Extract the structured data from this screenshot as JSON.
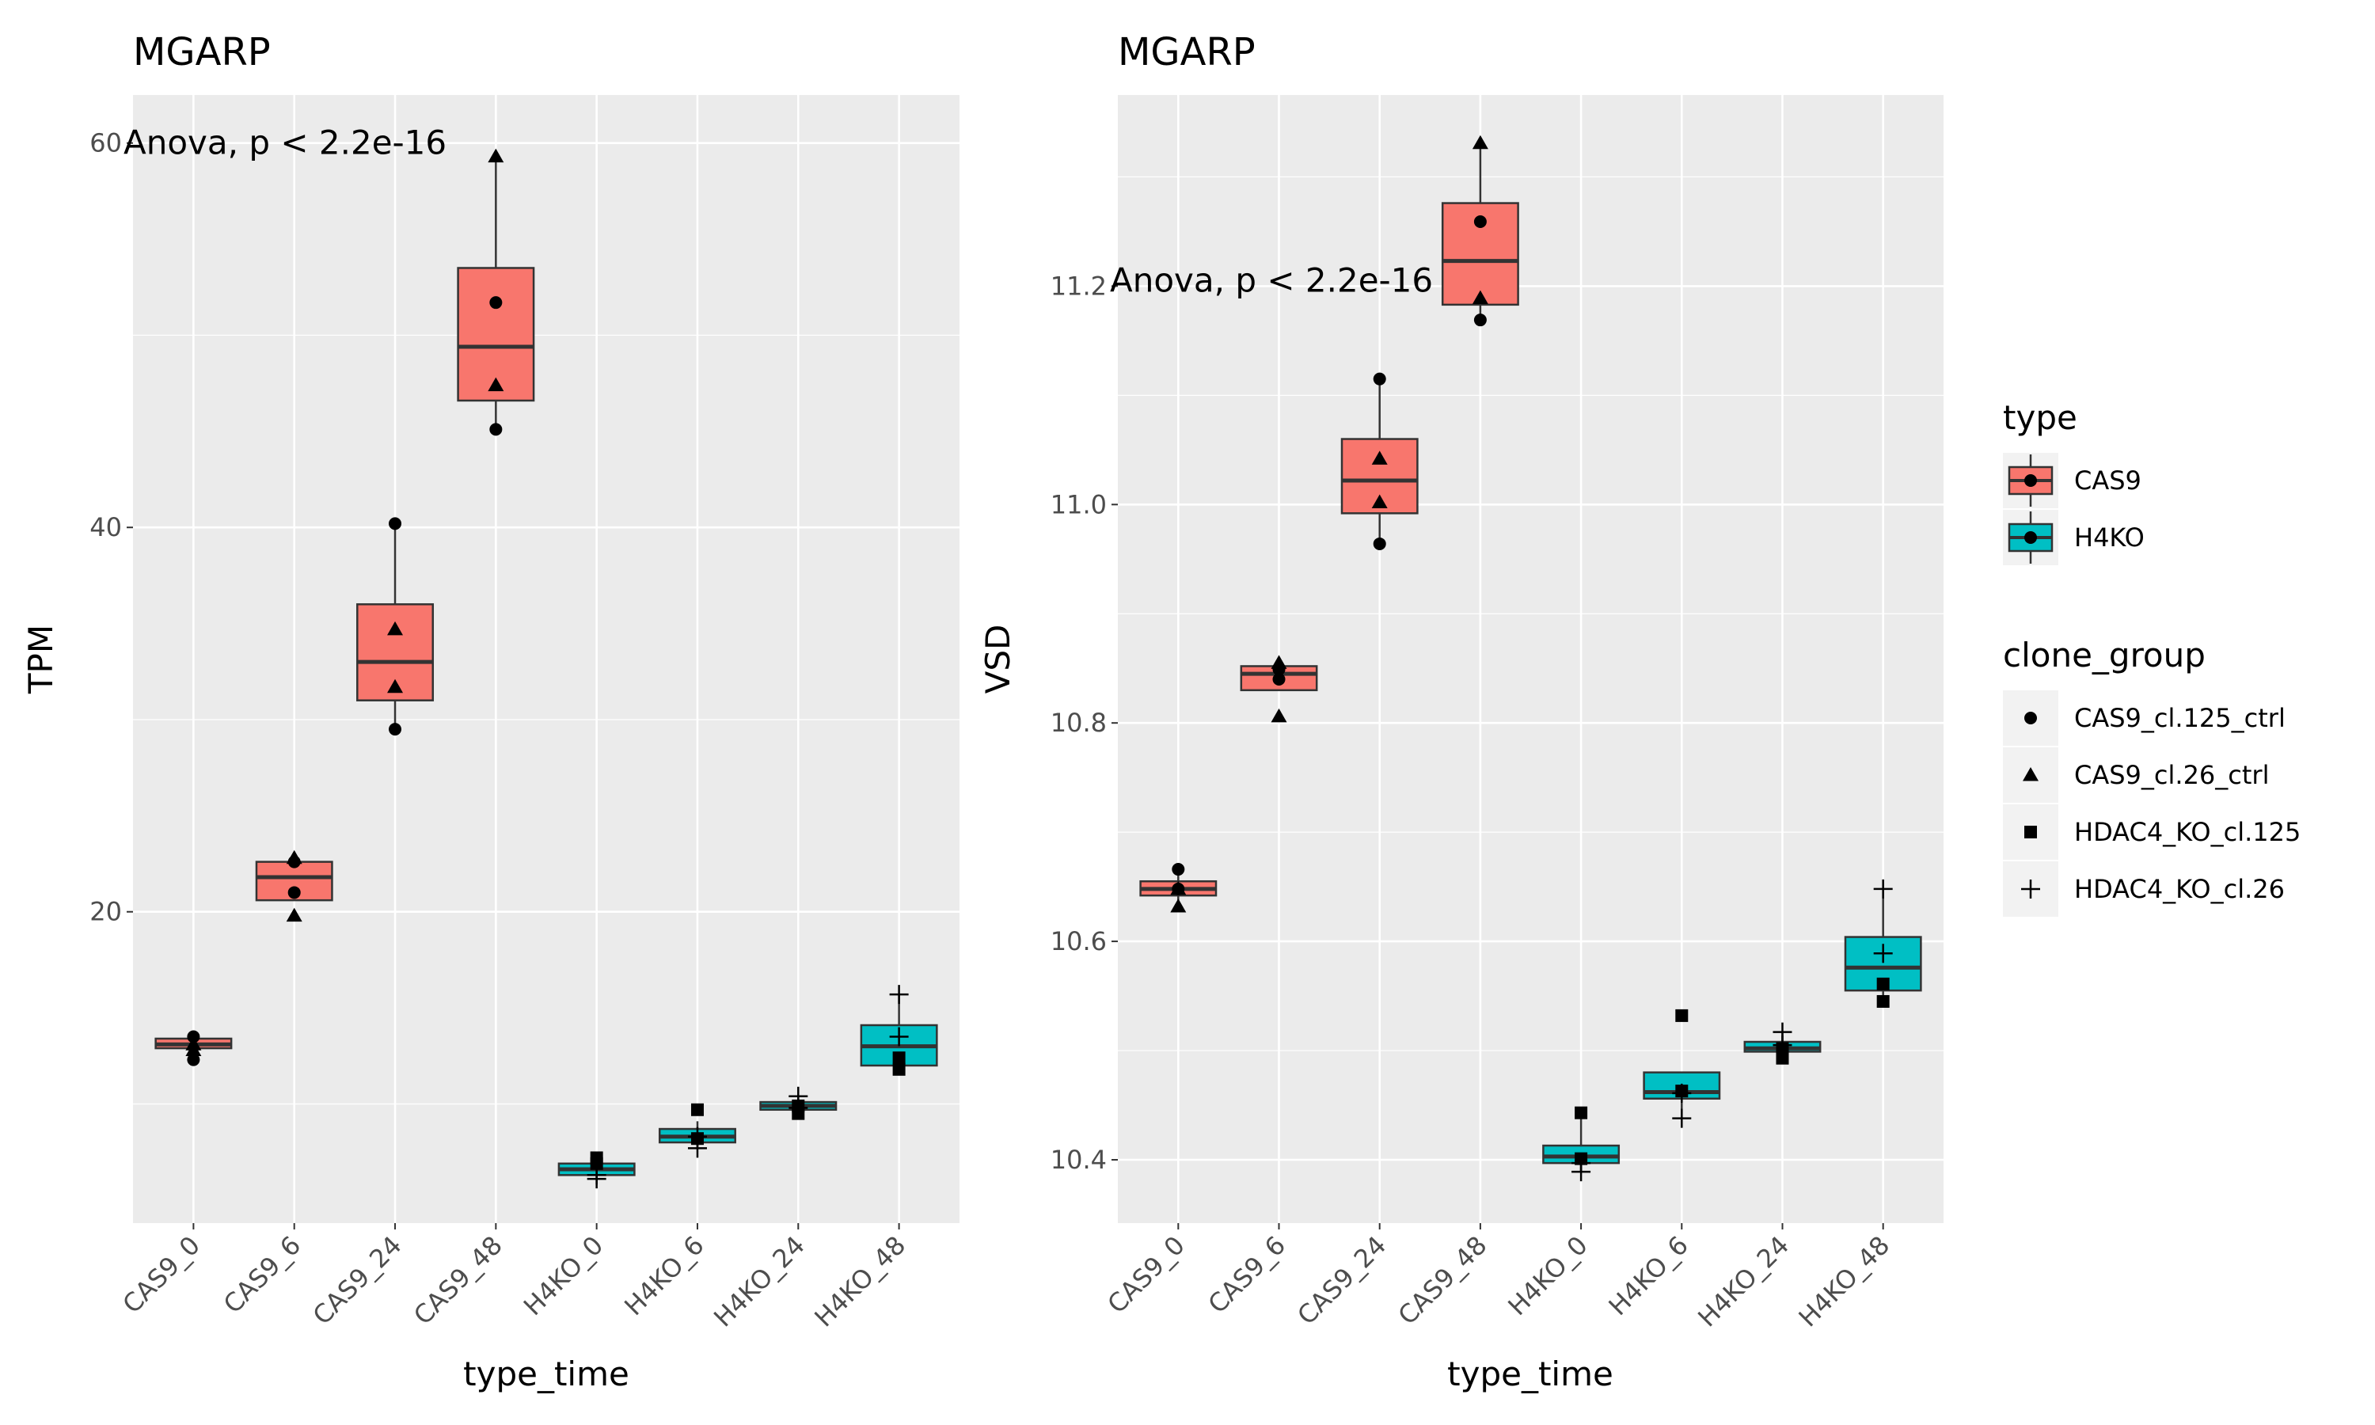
{
  "colors": {
    "panel_bg": "#EBEBEB",
    "grid": "#FFFFFF",
    "CAS9": "#F8766D",
    "H4KO": "#00BFC4",
    "outline": "#333333"
  },
  "chart_data": [
    {
      "type": "box",
      "title": "MGARP",
      "annotation": "Anova, p < 2.2e-16",
      "xlabel": "type_time",
      "ylabel": "TPM",
      "ylim": [
        3.8,
        62.5
      ],
      "yticks": [
        20,
        40,
        60
      ],
      "ytick_labels": [
        "20",
        "40",
        "60"
      ],
      "grid": true,
      "categories": [
        "CAS9_0",
        "CAS9_6",
        "CAS9_24",
        "CAS9_48",
        "H4KO_0",
        "H4KO_6",
        "H4KO_24",
        "H4KO_48"
      ],
      "boxes": [
        {
          "category": "CAS9_0",
          "type": "CAS9",
          "q1": 12.9,
          "median": 13.1,
          "q3": 13.4,
          "whisker_low": 12.8,
          "whisker_high": 13.5
        },
        {
          "category": "CAS9_6",
          "type": "CAS9",
          "q1": 20.6,
          "median": 21.8,
          "q3": 22.6,
          "whisker_low": 20.6,
          "whisker_high": 22.6
        },
        {
          "category": "CAS9_24",
          "type": "CAS9",
          "q1": 31.0,
          "median": 33.0,
          "q3": 36.0,
          "whisker_low": 29.5,
          "whisker_high": 40.2
        },
        {
          "category": "CAS9_48",
          "type": "CAS9",
          "q1": 46.6,
          "median": 49.4,
          "q3": 53.5,
          "whisker_low": 45.1,
          "whisker_high": 59.3
        },
        {
          "category": "H4KO_0",
          "type": "H4KO",
          "q1": 6.3,
          "median": 6.6,
          "q3": 6.9,
          "whisker_low": 6.1,
          "whisker_high": 7.2
        },
        {
          "category": "H4KO_6",
          "type": "H4KO",
          "q1": 8.0,
          "median": 8.3,
          "q3": 8.7,
          "whisker_low": 7.7,
          "whisker_high": 9.1
        },
        {
          "category": "H4KO_24",
          "type": "H4KO",
          "q1": 9.7,
          "median": 9.9,
          "q3": 10.1,
          "whisker_low": 9.5,
          "whisker_high": 10.4
        },
        {
          "category": "H4KO_48",
          "type": "H4KO",
          "q1": 12.0,
          "median": 13.0,
          "q3": 14.1,
          "whisker_low": 11.8,
          "whisker_high": 15.7
        }
      ],
      "points": [
        {
          "category": "CAS9_0",
          "group": "CAS9_cl.125_ctrl",
          "value": 13.5
        },
        {
          "category": "CAS9_0",
          "group": "CAS9_cl.125_ctrl",
          "value": 12.3
        },
        {
          "category": "CAS9_0",
          "group": "CAS9_cl.26_ctrl",
          "value": 13.1
        },
        {
          "category": "CAS9_0",
          "group": "CAS9_cl.26_ctrl",
          "value": 12.8
        },
        {
          "category": "CAS9_6",
          "group": "CAS9_cl.125_ctrl",
          "value": 22.6
        },
        {
          "category": "CAS9_6",
          "group": "CAS9_cl.125_ctrl",
          "value": 21.0
        },
        {
          "category": "CAS9_6",
          "group": "CAS9_cl.26_ctrl",
          "value": 22.8
        },
        {
          "category": "CAS9_6",
          "group": "CAS9_cl.26_ctrl",
          "value": 19.8
        },
        {
          "category": "CAS9_24",
          "group": "CAS9_cl.125_ctrl",
          "value": 40.2
        },
        {
          "category": "CAS9_24",
          "group": "CAS9_cl.125_ctrl",
          "value": 29.5
        },
        {
          "category": "CAS9_24",
          "group": "CAS9_cl.26_ctrl",
          "value": 34.7
        },
        {
          "category": "CAS9_24",
          "group": "CAS9_cl.26_ctrl",
          "value": 31.7
        },
        {
          "category": "CAS9_48",
          "group": "CAS9_cl.125_ctrl",
          "value": 51.7
        },
        {
          "category": "CAS9_48",
          "group": "CAS9_cl.125_ctrl",
          "value": 45.1
        },
        {
          "category": "CAS9_48",
          "group": "CAS9_cl.26_ctrl",
          "value": 59.3
        },
        {
          "category": "CAS9_48",
          "group": "CAS9_cl.26_ctrl",
          "value": 47.4
        },
        {
          "category": "H4KO_0",
          "group": "HDAC4_KO_cl.125",
          "value": 7.2
        },
        {
          "category": "H4KO_0",
          "group": "HDAC4_KO_cl.125",
          "value": 6.9
        },
        {
          "category": "H4KO_0",
          "group": "HDAC4_KO_cl.26",
          "value": 6.3
        },
        {
          "category": "H4KO_0",
          "group": "HDAC4_KO_cl.26",
          "value": 6.1
        },
        {
          "category": "H4KO_6",
          "group": "HDAC4_KO_cl.125",
          "value": 9.7
        },
        {
          "category": "H4KO_6",
          "group": "HDAC4_KO_cl.125",
          "value": 8.2
        },
        {
          "category": "H4KO_6",
          "group": "HDAC4_KO_cl.26",
          "value": 8.3
        },
        {
          "category": "H4KO_6",
          "group": "HDAC4_KO_cl.26",
          "value": 7.7
        },
        {
          "category": "H4KO_24",
          "group": "HDAC4_KO_cl.125",
          "value": 9.9
        },
        {
          "category": "H4KO_24",
          "group": "HDAC4_KO_cl.125",
          "value": 9.5
        },
        {
          "category": "H4KO_24",
          "group": "HDAC4_KO_cl.26",
          "value": 10.4
        },
        {
          "category": "H4KO_24",
          "group": "HDAC4_KO_cl.26",
          "value": 9.8
        },
        {
          "category": "H4KO_48",
          "group": "HDAC4_KO_cl.125",
          "value": 12.4
        },
        {
          "category": "H4KO_48",
          "group": "HDAC4_KO_cl.125",
          "value": 11.8
        },
        {
          "category": "H4KO_48",
          "group": "HDAC4_KO_cl.26",
          "value": 15.7
        },
        {
          "category": "H4KO_48",
          "group": "HDAC4_KO_cl.26",
          "value": 13.5
        }
      ]
    },
    {
      "type": "box",
      "title": "MGARP",
      "annotation": "Anova, p < 2.2e-16",
      "xlabel": "type_time",
      "ylabel": "VSD",
      "ylim": [
        10.342,
        11.375
      ],
      "yticks": [
        10.4,
        10.6,
        10.8,
        11.0,
        11.2
      ],
      "ytick_labels": [
        "10.4",
        "10.6",
        "10.8",
        "11.0",
        "11.2"
      ],
      "grid": true,
      "categories": [
        "CAS9_0",
        "CAS9_6",
        "CAS9_24",
        "CAS9_48",
        "H4KO_0",
        "H4KO_6",
        "H4KO_24",
        "H4KO_48"
      ],
      "boxes": [
        {
          "category": "CAS9_0",
          "type": "CAS9",
          "q1": 10.642,
          "median": 10.648,
          "q3": 10.655,
          "whisker_low": 10.632,
          "whisker_high": 10.666
        },
        {
          "category": "CAS9_6",
          "type": "CAS9",
          "q1": 10.83,
          "median": 10.845,
          "q3": 10.852,
          "whisker_low": 10.83,
          "whisker_high": 10.852
        },
        {
          "category": "CAS9_24",
          "type": "CAS9",
          "q1": 10.992,
          "median": 11.022,
          "q3": 11.06,
          "whisker_low": 10.964,
          "whisker_high": 11.115
        },
        {
          "category": "CAS9_48",
          "type": "CAS9",
          "q1": 11.183,
          "median": 11.223,
          "q3": 11.276,
          "whisker_low": 11.169,
          "whisker_high": 11.331
        },
        {
          "category": "H4KO_0",
          "type": "H4KO",
          "q1": 10.397,
          "median": 10.403,
          "q3": 10.413,
          "whisker_low": 10.389,
          "whisker_high": 10.443
        },
        {
          "category": "H4KO_6",
          "type": "H4KO",
          "q1": 10.456,
          "median": 10.462,
          "q3": 10.48,
          "whisker_low": 10.438,
          "whisker_high": 10.48
        },
        {
          "category": "H4KO_24",
          "type": "H4KO",
          "q1": 10.499,
          "median": 10.502,
          "q3": 10.508,
          "whisker_low": 10.493,
          "whisker_high": 10.517
        },
        {
          "category": "H4KO_48",
          "type": "H4KO",
          "q1": 10.555,
          "median": 10.576,
          "q3": 10.604,
          "whisker_low": 10.545,
          "whisker_high": 10.648
        }
      ],
      "points": [
        {
          "category": "CAS9_0",
          "group": "CAS9_cl.125_ctrl",
          "value": 10.666
        },
        {
          "category": "CAS9_0",
          "group": "CAS9_cl.125_ctrl",
          "value": 10.648
        },
        {
          "category": "CAS9_0",
          "group": "CAS9_cl.26_ctrl",
          "value": 10.648
        },
        {
          "category": "CAS9_0",
          "group": "CAS9_cl.26_ctrl",
          "value": 10.632
        },
        {
          "category": "CAS9_6",
          "group": "CAS9_cl.125_ctrl",
          "value": 10.849
        },
        {
          "category": "CAS9_6",
          "group": "CAS9_cl.125_ctrl",
          "value": 10.84
        },
        {
          "category": "CAS9_6",
          "group": "CAS9_cl.26_ctrl",
          "value": 10.855
        },
        {
          "category": "CAS9_6",
          "group": "CAS9_cl.26_ctrl",
          "value": 10.806
        },
        {
          "category": "CAS9_24",
          "group": "CAS9_cl.125_ctrl",
          "value": 11.115
        },
        {
          "category": "CAS9_24",
          "group": "CAS9_cl.125_ctrl",
          "value": 10.964
        },
        {
          "category": "CAS9_24",
          "group": "CAS9_cl.26_ctrl",
          "value": 11.042
        },
        {
          "category": "CAS9_24",
          "group": "CAS9_cl.26_ctrl",
          "value": 11.002
        },
        {
          "category": "CAS9_48",
          "group": "CAS9_cl.125_ctrl",
          "value": 11.259
        },
        {
          "category": "CAS9_48",
          "group": "CAS9_cl.125_ctrl",
          "value": 11.169
        },
        {
          "category": "CAS9_48",
          "group": "CAS9_cl.26_ctrl",
          "value": 11.331
        },
        {
          "category": "CAS9_48",
          "group": "CAS9_cl.26_ctrl",
          "value": 11.189
        },
        {
          "category": "H4KO_0",
          "group": "HDAC4_KO_cl.125",
          "value": 10.443
        },
        {
          "category": "H4KO_0",
          "group": "HDAC4_KO_cl.125",
          "value": 10.401
        },
        {
          "category": "H4KO_0",
          "group": "HDAC4_KO_cl.26",
          "value": 10.397
        },
        {
          "category": "H4KO_0",
          "group": "HDAC4_KO_cl.26",
          "value": 10.389
        },
        {
          "category": "H4KO_6",
          "group": "HDAC4_KO_cl.125",
          "value": 10.532
        },
        {
          "category": "H4KO_6",
          "group": "HDAC4_KO_cl.125",
          "value": 10.463
        },
        {
          "category": "H4KO_6",
          "group": "HDAC4_KO_cl.26",
          "value": 10.461
        },
        {
          "category": "H4KO_6",
          "group": "HDAC4_KO_cl.26",
          "value": 10.438
        },
        {
          "category": "H4KO_24",
          "group": "HDAC4_KO_cl.125",
          "value": 10.502
        },
        {
          "category": "H4KO_24",
          "group": "HDAC4_KO_cl.125",
          "value": 10.493
        },
        {
          "category": "H4KO_24",
          "group": "HDAC4_KO_cl.26",
          "value": 10.517
        },
        {
          "category": "H4KO_24",
          "group": "HDAC4_KO_cl.26",
          "value": 10.505
        },
        {
          "category": "H4KO_48",
          "group": "HDAC4_KO_cl.125",
          "value": 10.561
        },
        {
          "category": "H4KO_48",
          "group": "HDAC4_KO_cl.125",
          "value": 10.545
        },
        {
          "category": "H4KO_48",
          "group": "HDAC4_KO_cl.26",
          "value": 10.648
        },
        {
          "category": "H4KO_48",
          "group": "HDAC4_KO_cl.26",
          "value": 10.589
        }
      ]
    }
  ],
  "legend": {
    "placement": "right",
    "type": {
      "title": "type",
      "items": [
        {
          "label": "CAS9",
          "color": "#F8766D"
        },
        {
          "label": "H4KO",
          "color": "#00BFC4"
        }
      ]
    },
    "clone_group": {
      "title": "clone_group",
      "items": [
        {
          "label": "CAS9_cl.125_ctrl",
          "shape": "circle"
        },
        {
          "label": "CAS9_cl.26_ctrl",
          "shape": "triangle"
        },
        {
          "label": "HDAC4_KO_cl.125",
          "shape": "square"
        },
        {
          "label": "HDAC4_KO_cl.26",
          "shape": "plus"
        }
      ]
    }
  }
}
